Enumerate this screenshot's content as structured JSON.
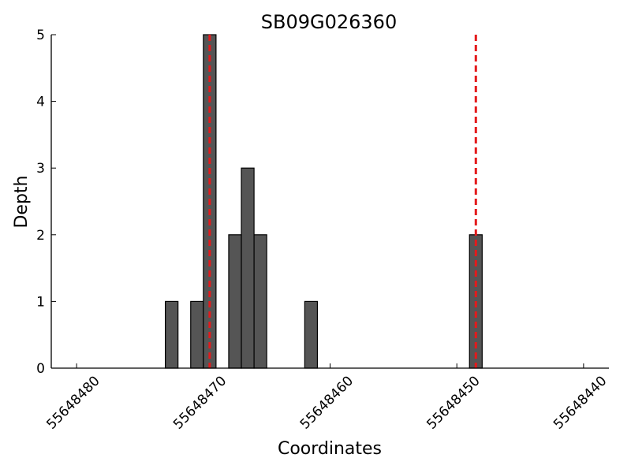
{
  "chart_data": {
    "type": "histogram",
    "title": "SB09G026360",
    "x_label": "Coordinates",
    "y_label": "Depth",
    "bins": [
      55648473,
      55648472,
      55648471,
      55648470,
      55648469,
      55648468,
      55648467,
      55648466,
      55648465,
      55648464,
      55648463,
      55648462,
      55648461,
      55648460,
      55648459,
      55648458,
      55648457,
      55648456,
      55648455,
      55648454,
      55648453,
      55648452,
      55648451,
      55648450,
      55648449,
      55648448
    ],
    "values": [
      1,
      0,
      1,
      5,
      0,
      2,
      3,
      2,
      0,
      0,
      0,
      1,
      0,
      0,
      0,
      0,
      0,
      0,
      0,
      0,
      0,
      0,
      0,
      0,
      2
    ],
    "color": "#555555",
    "vlines": [
      55648469.5,
      55648448.5
    ],
    "vline_color": "#e41a1c",
    "xlim": [
      55648482,
      55648438
    ],
    "xticks": [
      55648480,
      55648470,
      55648460,
      55648450,
      55648440
    ],
    "ylim": [
      0,
      5
    ],
    "yticks": [
      0,
      1,
      2,
      3,
      4,
      5
    ]
  }
}
